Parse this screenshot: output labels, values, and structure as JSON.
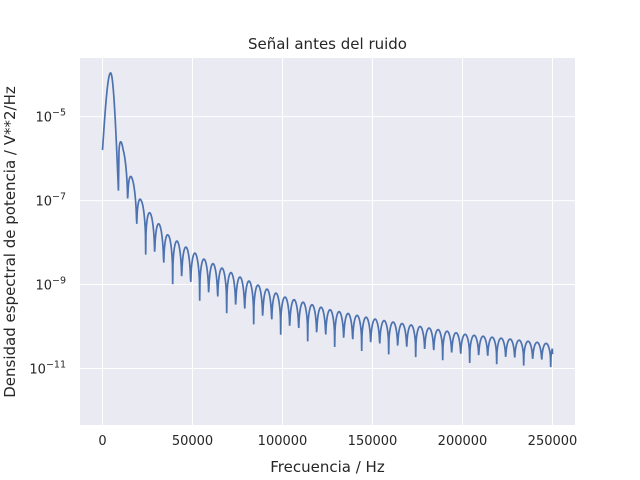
{
  "chart_data": {
    "type": "line",
    "title": "Señal antes del ruido",
    "xlabel": "Frecuencia / Hz",
    "ylabel": "Densidad espectral de potencia / V**2/Hz",
    "xlim": [
      -12500,
      262500
    ],
    "ylim": [
      4.5e-13,
      0.00025
    ],
    "yscale": "log",
    "grid": true,
    "background_color": "#eaeaf2",
    "line_color": "#4c72b0",
    "x_ticks": [
      {
        "value": 0,
        "label": "0"
      },
      {
        "value": 50000,
        "label": "50000"
      },
      {
        "value": 100000,
        "label": "100000"
      },
      {
        "value": 150000,
        "label": "150000"
      },
      {
        "value": 200000,
        "label": "200000"
      },
      {
        "value": 250000,
        "label": "250000"
      }
    ],
    "y_ticks": [
      {
        "value": 1e-11,
        "base": "10",
        "exp": "−11"
      },
      {
        "value": 1e-09,
        "base": "10",
        "exp": "−9"
      },
      {
        "value": 1e-07,
        "base": "10",
        "exp": "−7"
      },
      {
        "value": 1e-05,
        "base": "10",
        "exp": "−5"
      }
    ],
    "series": [
      {
        "envelope_peaks": [
          {
            "x": 4500,
            "y": 0.00011
          },
          {
            "x": 11500,
            "y": 1.6e-06
          },
          {
            "x": 16500,
            "y": 3.3e-07
          },
          {
            "x": 21500,
            "y": 1e-07
          },
          {
            "x": 26500,
            "y": 5e-08
          },
          {
            "x": 36500,
            "y": 1.5e-08
          },
          {
            "x": 56500,
            "y": 4e-09
          },
          {
            "x": 76500,
            "y": 1.5e-09
          },
          {
            "x": 101500,
            "y": 5e-10
          },
          {
            "x": 126500,
            "y": 2.5e-10
          },
          {
            "x": 151500,
            "y": 1.5e-10
          },
          {
            "x": 176500,
            "y": 1e-10
          },
          {
            "x": 201500,
            "y": 6.5e-11
          },
          {
            "x": 226500,
            "y": 5e-11
          },
          {
            "x": 250000,
            "y": 3.8e-11
          }
        ],
        "start": {
          "x": 0,
          "y": 1.6e-06
        },
        "null_spacing": 5000,
        "first_null": 9000,
        "null_depth_decades_start": 1.2,
        "null_depth_decades_end": 0.55,
        "end_value": 2.2e-11
      }
    ]
  }
}
